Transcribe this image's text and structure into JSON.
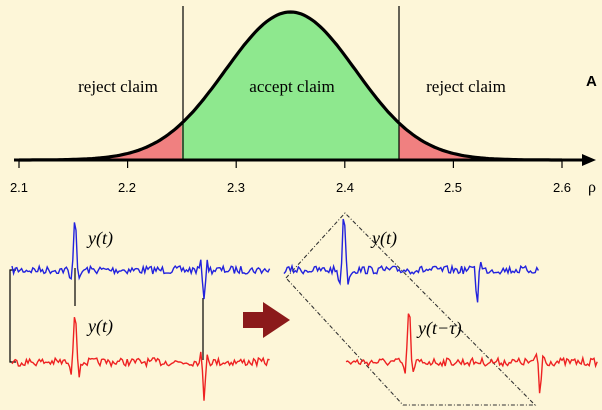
{
  "panel_label": "A",
  "top_panel": {
    "regions": {
      "left": "reject claim",
      "middle": "accept claim",
      "right": "reject claim"
    },
    "axis": {
      "label": "ρ",
      "ticks": [
        "2.1",
        "2.2",
        "2.3",
        "2.4",
        "2.5",
        "2.6"
      ]
    },
    "colors": {
      "accept_fill": "#8ee88e",
      "reject_fill": "#f08080",
      "curve": "#000000"
    }
  },
  "bottom_panel": {
    "left": {
      "top_label": "y(t)",
      "bottom_label": "y(t)"
    },
    "right": {
      "top_label": "y(t)",
      "bottom_label": "y(t−τ)"
    },
    "colors": {
      "top_trace": "#2222dd",
      "bottom_trace": "#ee2222",
      "arrow": "#8b1a1a",
      "background": "#fdf6d8"
    }
  }
}
